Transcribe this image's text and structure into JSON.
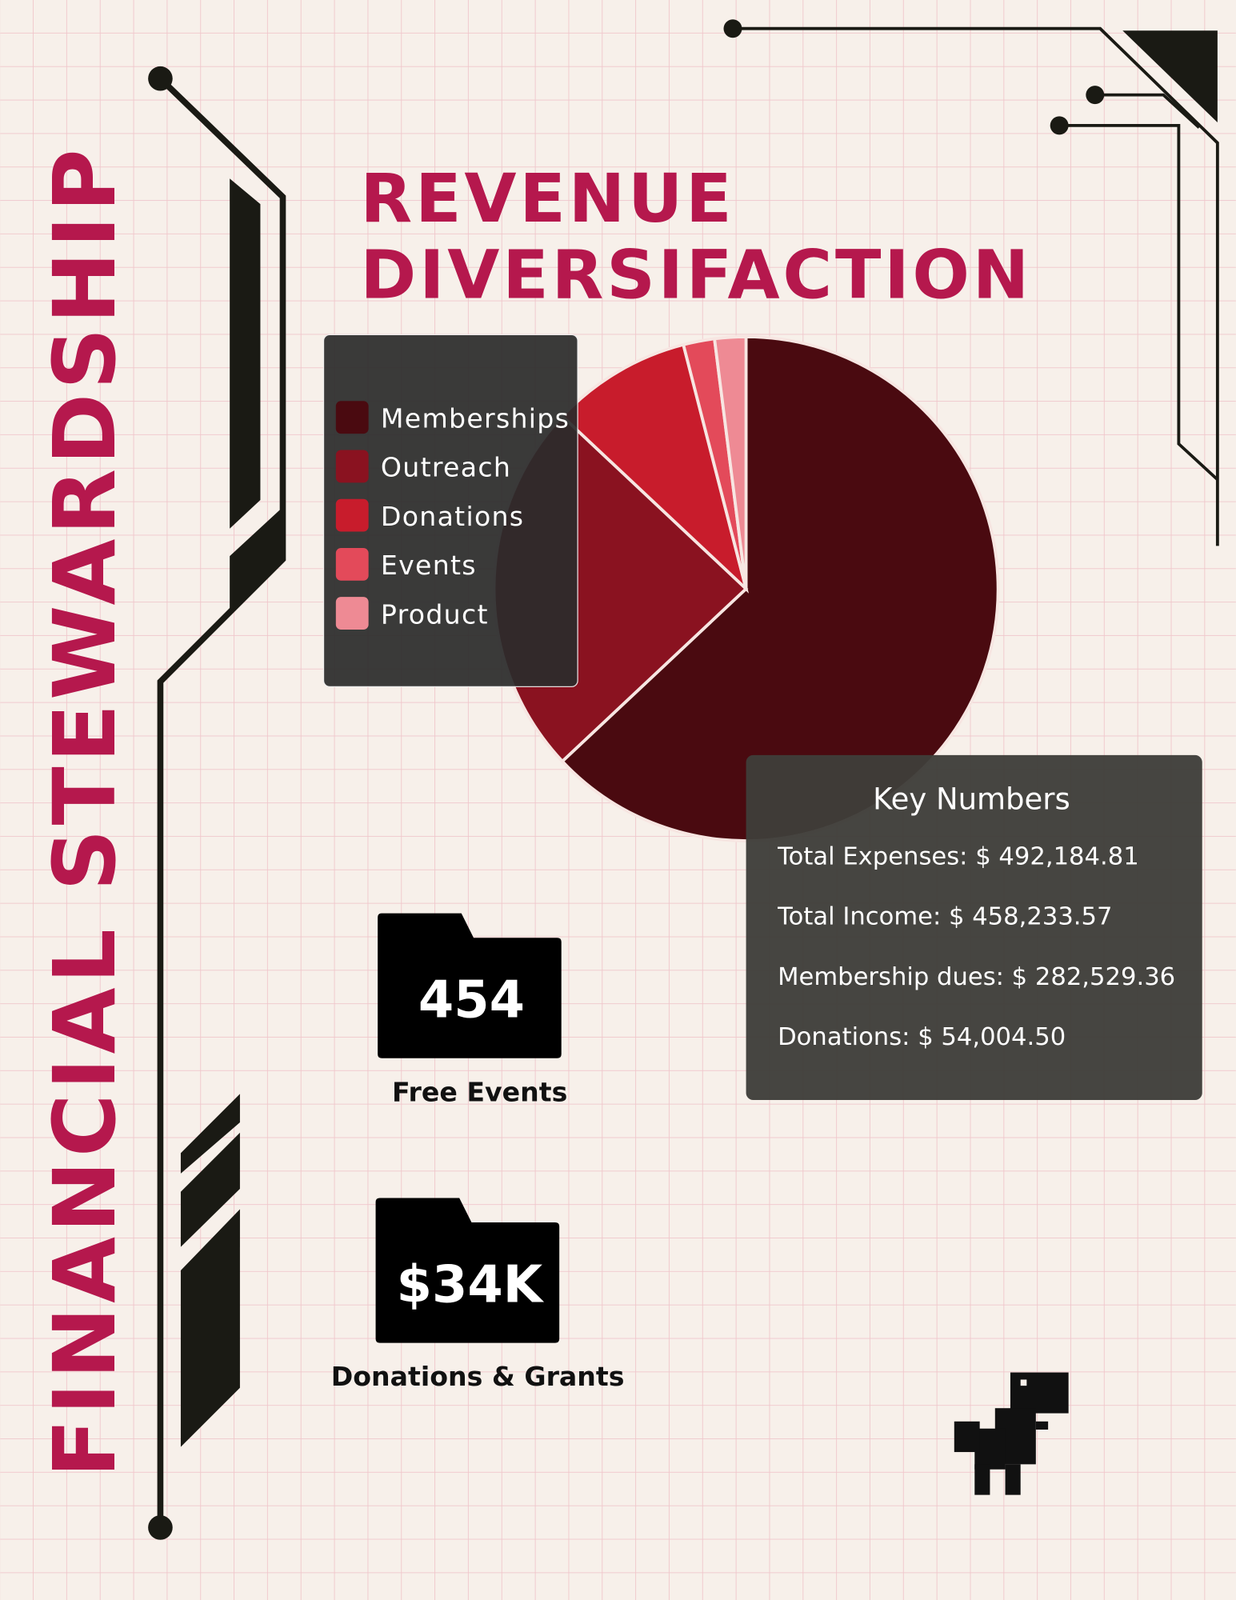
{
  "side_title": "FINANCIAL STEWARDSHIP",
  "chart_data": {
    "type": "pie",
    "title": [
      "REVENUE",
      "DIVERSIFACTION"
    ],
    "categories": [
      "Memberships",
      "Outreach",
      "Donations",
      "Events",
      "Product"
    ],
    "values": [
      63,
      24,
      9,
      2,
      2
    ],
    "colors": [
      "#4a0a10",
      "#8a1220",
      "#c81c2c",
      "#e34a5a",
      "#ee8a94"
    ]
  },
  "key_numbers": {
    "title": "Key Numbers",
    "items": [
      "Total Expenses: $ 492,184.81",
      "Total Income: $ 458,233.57",
      "Membership dues: $ 282,529.36",
      "Donations: $ 54,004.50"
    ]
  },
  "stats": [
    {
      "value": "454",
      "label": "Free Events"
    },
    {
      "value": "$34K",
      "label": "Donations & Grants"
    }
  ]
}
